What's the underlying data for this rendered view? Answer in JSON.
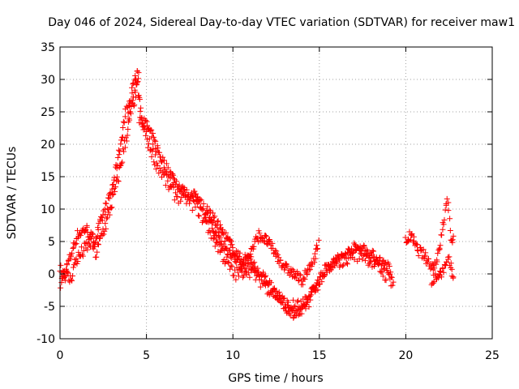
{
  "chart_data": {
    "type": "scatter",
    "title": "Day 046 of 2024, Sidereal Day-to-day VTEC variation (SDTVAR) for receiver maw1",
    "xlabel": "GPS time / hours",
    "ylabel": "SDTVAR / TECUs",
    "xlim": [
      0,
      25
    ],
    "ylim": [
      -10,
      35
    ],
    "x_ticks": [
      0,
      5,
      10,
      15,
      20,
      25
    ],
    "y_ticks": [
      -10,
      -5,
      0,
      5,
      10,
      15,
      20,
      25,
      30,
      35
    ],
    "grid": true,
    "marker": "+",
    "colors": {
      "series": "#ff0000",
      "axes": "#000000",
      "grid": "#a0a0a0"
    },
    "series": [
      {
        "name": "maw1",
        "trend": {
          "x": [
            0.0,
            0.3,
            0.6,
            0.9,
            1.2,
            1.5,
            1.8,
            2.1,
            2.4,
            2.7,
            3.0,
            3.3,
            3.6,
            3.9,
            4.1,
            4.3,
            4.5,
            4.7,
            5.0,
            5.3,
            5.6,
            6.0,
            6.4,
            6.8,
            7.2,
            7.6,
            8.0,
            8.4,
            8.8,
            9.2,
            9.6,
            10.0,
            10.4,
            10.8,
            11.2,
            11.6,
            12.0,
            12.4,
            12.8,
            13.2,
            13.6,
            14.0,
            14.4,
            14.8,
            15.2,
            15.6,
            16.0,
            16.4,
            16.8,
            17.2,
            17.6,
            18.0,
            18.4,
            18.8,
            19.2
          ],
          "y": [
            1,
            0,
            -1,
            2,
            3,
            4,
            5,
            3,
            6,
            8,
            11,
            14,
            18,
            22,
            25,
            27,
            29,
            24,
            21,
            19,
            17,
            15,
            13,
            12,
            12,
            11,
            10,
            8,
            6,
            4,
            2,
            0,
            0,
            1,
            0,
            -1,
            -2,
            -3,
            -4,
            -5,
            -5,
            -5,
            -4,
            -2,
            0,
            1,
            2,
            2,
            3,
            3,
            3,
            2,
            1,
            0,
            -1
          ]
        },
        "bands": [
          {
            "x": [
              0.0,
              0.5,
              1.0,
              1.5,
              2.0,
              2.5,
              3.0,
              3.5,
              3.8,
              4.0,
              4.3,
              4.6
            ],
            "y": [
              -2,
              2,
              6,
              7,
              5,
              9,
              13,
              20,
              25,
              26,
              30,
              31
            ]
          },
          {
            "x": [
              4.6,
              5.0,
              5.5,
              6.0,
              6.5,
              7.0,
              7.5,
              8.0,
              8.5,
              9.0,
              9.5,
              10.0,
              10.5,
              11.0,
              11.5,
              12.0,
              12.5,
              13.0,
              13.5,
              14.0,
              14.5,
              15.0,
              15.5,
              16.0,
              16.5,
              17.0,
              17.5,
              18.0,
              18.5,
              19.0,
              19.3
            ],
            "y": [
              24,
              23,
              20,
              17,
              15,
              13,
              12,
              12,
              9,
              6,
              4,
              3,
              1,
              2,
              0,
              -1,
              -3,
              -5,
              -6,
              -6,
              -3,
              -1,
              1,
              2,
              3,
              4,
              4,
              3,
              2,
              1,
              -2
            ]
          },
          {
            "x": [
              8.5,
              9.0,
              9.5,
              10.0,
              10.5,
              11.0,
              11.5,
              12.0,
              12.5,
              13.0,
              13.5,
              14.0,
              14.5,
              15.0
            ],
            "y": [
              10,
              8,
              6,
              4,
              2,
              3,
              6,
              5,
              3,
              1,
              0,
              -1,
              1,
              5
            ]
          },
          {
            "x": [
              20.0,
              20.3,
              20.6,
              21.0,
              21.3,
              21.6,
              21.9,
              22.2,
              22.4,
              22.6,
              22.8
            ],
            "y": [
              5,
              6,
              4,
              3,
              2,
              1,
              3,
              8,
              12,
              5,
              6
            ]
          },
          {
            "x": [
              21.5,
              22.0,
              22.5,
              22.8
            ],
            "y": [
              -1,
              0,
              2,
              -1
            ]
          }
        ]
      }
    ]
  }
}
